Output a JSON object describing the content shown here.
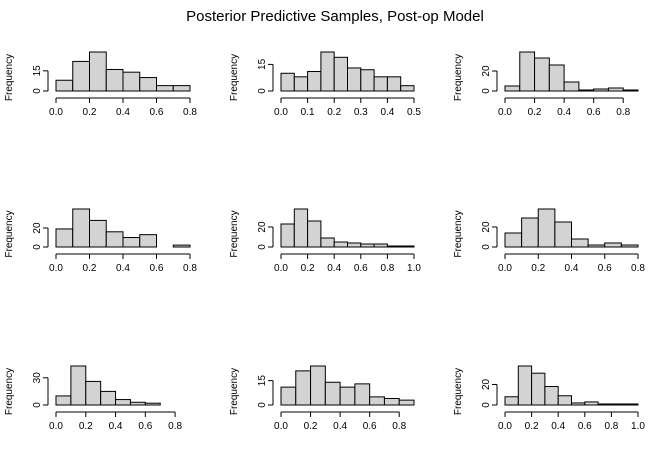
{
  "title": "Posterior Predictive Samples, Post-op Model",
  "colors": {
    "bar_fill": "#d3d3d3",
    "bar_stroke": "#000000",
    "axis": "#000000",
    "background": "#ffffff"
  },
  "chart_data": [
    {
      "type": "bar",
      "panel": "row1-col1",
      "ylabel": "Frequency",
      "xlabel": "",
      "bins": [
        [
          0,
          0.1
        ],
        [
          0.1,
          0.2
        ],
        [
          0.2,
          0.3
        ],
        [
          0.3,
          0.4
        ],
        [
          0.4,
          0.5
        ],
        [
          0.5,
          0.6
        ],
        [
          0.6,
          0.7
        ],
        [
          0.7,
          0.8
        ]
      ],
      "values": [
        8,
        22,
        29,
        16,
        14,
        10,
        4,
        4
      ],
      "xticks": [
        "0.0",
        "0.2",
        "0.4",
        "0.6",
        "0.8"
      ],
      "xtick_values": [
        0,
        0.2,
        0.4,
        0.6,
        0.8
      ],
      "xlim": [
        0,
        0.8
      ],
      "yticks": [
        "0",
        "15"
      ],
      "ytick_values": [
        0,
        15
      ],
      "ylim": [
        0,
        29
      ]
    },
    {
      "type": "bar",
      "panel": "row1-col2",
      "ylabel": "Frequency",
      "xlabel": "",
      "bins": [
        [
          0,
          0.05
        ],
        [
          0.05,
          0.1
        ],
        [
          0.1,
          0.15
        ],
        [
          0.15,
          0.2
        ],
        [
          0.2,
          0.25
        ],
        [
          0.25,
          0.3
        ],
        [
          0.3,
          0.35
        ],
        [
          0.35,
          0.4
        ],
        [
          0.4,
          0.45
        ],
        [
          0.45,
          0.5
        ]
      ],
      "values": [
        10,
        8,
        11,
        22,
        19,
        13,
        12,
        8,
        8,
        3
      ],
      "xticks": [
        "0.0",
        "0.1",
        "0.2",
        "0.3",
        "0.4",
        "0.5"
      ],
      "xtick_values": [
        0,
        0.1,
        0.2,
        0.3,
        0.4,
        0.5
      ],
      "xlim": [
        0,
        0.5
      ],
      "yticks": [
        "0",
        "15"
      ],
      "ytick_values": [
        0,
        15
      ],
      "ylim": [
        0,
        22
      ]
    },
    {
      "type": "bar",
      "panel": "row1-col3",
      "ylabel": "Frequency",
      "xlabel": "",
      "bins": [
        [
          0,
          0.1
        ],
        [
          0.1,
          0.2
        ],
        [
          0.2,
          0.3
        ],
        [
          0.3,
          0.4
        ],
        [
          0.4,
          0.5
        ],
        [
          0.5,
          0.6
        ],
        [
          0.6,
          0.7
        ],
        [
          0.7,
          0.8
        ],
        [
          0.8,
          0.9
        ]
      ],
      "values": [
        5,
        39,
        33,
        26,
        9,
        1,
        2,
        3,
        1
      ],
      "xticks": [
        "0.0",
        "0.2",
        "0.4",
        "0.6",
        "0.8"
      ],
      "xtick_values": [
        0,
        0.2,
        0.4,
        0.6,
        0.8
      ],
      "xlim": [
        0,
        0.9
      ],
      "yticks": [
        "0",
        "20"
      ],
      "ytick_values": [
        0,
        20
      ],
      "ylim": [
        0,
        39
      ]
    },
    {
      "type": "bar",
      "panel": "row2-col1",
      "ylabel": "Frequency",
      "xlabel": "",
      "bins": [
        [
          0,
          0.1
        ],
        [
          0.1,
          0.2
        ],
        [
          0.2,
          0.3
        ],
        [
          0.3,
          0.4
        ],
        [
          0.4,
          0.5
        ],
        [
          0.5,
          0.6
        ],
        [
          0.6,
          0.7
        ],
        [
          0.7,
          0.8
        ]
      ],
      "values": [
        19,
        40,
        28,
        16,
        10,
        13,
        0,
        2
      ],
      "xticks": [
        "0.0",
        "0.2",
        "0.4",
        "0.6",
        "0.8"
      ],
      "xtick_values": [
        0,
        0.2,
        0.4,
        0.6,
        0.8
      ],
      "xlim": [
        0,
        0.8
      ],
      "yticks": [
        "0",
        "20"
      ],
      "ytick_values": [
        0,
        20
      ],
      "ylim": [
        0,
        40
      ]
    },
    {
      "type": "bar",
      "panel": "row2-col2",
      "ylabel": "Frequency",
      "xlabel": "",
      "bins": [
        [
          0,
          0.1
        ],
        [
          0.1,
          0.2
        ],
        [
          0.2,
          0.3
        ],
        [
          0.3,
          0.4
        ],
        [
          0.4,
          0.5
        ],
        [
          0.5,
          0.6
        ],
        [
          0.6,
          0.7
        ],
        [
          0.7,
          0.8
        ],
        [
          0.8,
          0.9
        ],
        [
          0.9,
          1.0
        ]
      ],
      "values": [
        23,
        38,
        26,
        9,
        5,
        4,
        3,
        3,
        1,
        1
      ],
      "xticks": [
        "0.0",
        "0.2",
        "0.4",
        "0.6",
        "0.8",
        "1.0"
      ],
      "xtick_values": [
        0,
        0.2,
        0.4,
        0.6,
        0.8,
        1.0
      ],
      "xlim": [
        0,
        1.0
      ],
      "yticks": [
        "0",
        "20"
      ],
      "ytick_values": [
        0,
        20
      ],
      "ylim": [
        0,
        38
      ]
    },
    {
      "type": "bar",
      "panel": "row2-col3",
      "ylabel": "Frequency",
      "xlabel": "",
      "bins": [
        [
          0,
          0.1
        ],
        [
          0.1,
          0.2
        ],
        [
          0.2,
          0.3
        ],
        [
          0.3,
          0.4
        ],
        [
          0.4,
          0.5
        ],
        [
          0.5,
          0.6
        ],
        [
          0.6,
          0.7
        ],
        [
          0.7,
          0.8
        ]
      ],
      "values": [
        14,
        29,
        38,
        25,
        8,
        2,
        4,
        2
      ],
      "xticks": [
        "0.0",
        "0.2",
        "0.4",
        "0.6",
        "0.8"
      ],
      "xtick_values": [
        0,
        0.2,
        0.4,
        0.6,
        0.8
      ],
      "xlim": [
        0,
        0.8
      ],
      "yticks": [
        "0",
        "20"
      ],
      "ytick_values": [
        0,
        20
      ],
      "ylim": [
        0,
        38
      ]
    },
    {
      "type": "bar",
      "panel": "row3-col1",
      "ylabel": "Frequency",
      "xlabel": "",
      "bins": [
        [
          0,
          0.1
        ],
        [
          0.1,
          0.2
        ],
        [
          0.2,
          0.3
        ],
        [
          0.3,
          0.4
        ],
        [
          0.4,
          0.5
        ],
        [
          0.5,
          0.6
        ],
        [
          0.6,
          0.7
        ],
        [
          0.7,
          0.8
        ],
        [
          0.8,
          0.9
        ]
      ],
      "values": [
        10,
        43,
        26,
        15,
        6,
        3,
        2,
        0,
        0
      ],
      "xticks": [
        "0.0",
        "0.2",
        "0.4",
        "0.6",
        "0.8"
      ],
      "xtick_values": [
        0,
        0.2,
        0.4,
        0.6,
        0.8
      ],
      "xlim": [
        0,
        0.9
      ],
      "yticks": [
        "0",
        "30"
      ],
      "ytick_values": [
        0,
        30
      ],
      "ylim": [
        0,
        43
      ]
    },
    {
      "type": "bar",
      "panel": "row3-col2",
      "ylabel": "Frequency",
      "xlabel": "",
      "bins": [
        [
          0,
          0.1
        ],
        [
          0.1,
          0.2
        ],
        [
          0.2,
          0.3
        ],
        [
          0.3,
          0.4
        ],
        [
          0.4,
          0.5
        ],
        [
          0.5,
          0.6
        ],
        [
          0.6,
          0.7
        ],
        [
          0.7,
          0.8
        ],
        [
          0.8,
          0.9
        ]
      ],
      "values": [
        11,
        21,
        24,
        14,
        11,
        13,
        5,
        4,
        3
      ],
      "xticks": [
        "0.0",
        "0.2",
        "0.4",
        "0.6",
        "0.8"
      ],
      "xtick_values": [
        0,
        0.2,
        0.4,
        0.6,
        0.8
      ],
      "xlim": [
        0,
        0.9
      ],
      "yticks": [
        "0",
        "15"
      ],
      "ytick_values": [
        0,
        15
      ],
      "ylim": [
        0,
        24
      ]
    },
    {
      "type": "bar",
      "panel": "row3-col3",
      "ylabel": "Frequency",
      "xlabel": "",
      "bins": [
        [
          0,
          0.1
        ],
        [
          0.1,
          0.2
        ],
        [
          0.2,
          0.3
        ],
        [
          0.3,
          0.4
        ],
        [
          0.4,
          0.5
        ],
        [
          0.5,
          0.6
        ],
        [
          0.6,
          0.7
        ],
        [
          0.7,
          0.8
        ],
        [
          0.8,
          0.9
        ],
        [
          0.9,
          1.0
        ]
      ],
      "values": [
        8,
        38,
        31,
        18,
        9,
        2,
        3,
        1,
        1,
        1
      ],
      "xticks": [
        "0.0",
        "0.2",
        "0.4",
        "0.6",
        "0.8",
        "1.0"
      ],
      "xtick_values": [
        0,
        0.2,
        0.4,
        0.6,
        0.8,
        1.0
      ],
      "xlim": [
        0,
        1.0
      ],
      "yticks": [
        "0",
        "20"
      ],
      "ytick_values": [
        0,
        20
      ],
      "ylim": [
        0,
        38
      ]
    }
  ]
}
